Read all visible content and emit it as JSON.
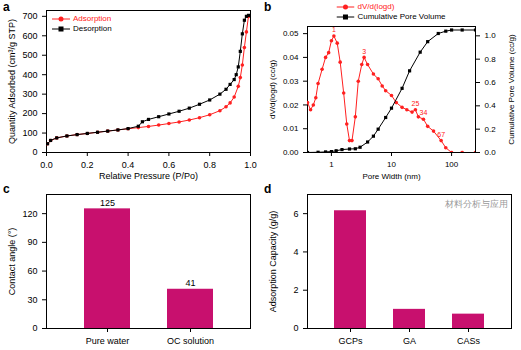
{
  "chart_data": [
    {
      "type": "line",
      "title": "a",
      "x_label": "Relative Pressure (P/Po)",
      "y_label": "Quantity Adsorbed (cm³/g STP)",
      "xlim": [
        0,
        1
      ],
      "xticks": [
        {
          "value": 0,
          "label": "0.0"
        },
        0.2,
        0.4,
        0.6,
        0.8,
        {
          "value": 1,
          "label": "1.0"
        }
      ],
      "ylim": [
        0,
        730
      ],
      "yticks": [
        0,
        100,
        200,
        300,
        400,
        500,
        600,
        700
      ],
      "legend": "upper left",
      "series": [
        {
          "name": "Adsorption",
          "color": "#ff2020",
          "marker": "circle",
          "x": [
            0.005,
            0.02,
            0.05,
            0.1,
            0.15,
            0.2,
            0.25,
            0.3,
            0.35,
            0.4,
            0.45,
            0.5,
            0.55,
            0.6,
            0.65,
            0.7,
            0.75,
            0.8,
            0.85,
            0.88,
            0.9,
            0.92,
            0.94,
            0.95,
            0.96,
            0.97,
            0.98,
            0.99
          ],
          "values": [
            45,
            62,
            75,
            85,
            92,
            98,
            104,
            110,
            116,
            122,
            128,
            134,
            141,
            149,
            157,
            167,
            179,
            194,
            215,
            235,
            255,
            285,
            340,
            385,
            450,
            540,
            620,
            700
          ]
        },
        {
          "name": "Desorption",
          "color": "#000000",
          "marker": "square",
          "x": [
            0.99,
            0.98,
            0.97,
            0.96,
            0.95,
            0.94,
            0.93,
            0.92,
            0.9,
            0.88,
            0.85,
            0.8,
            0.75,
            0.7,
            0.65,
            0.6,
            0.55,
            0.5,
            0.47,
            0.45,
            0.4,
            0.35,
            0.3,
            0.25,
            0.2,
            0.15,
            0.1,
            0.05,
            0.02,
            0.005
          ],
          "values": [
            705,
            700,
            680,
            610,
            520,
            440,
            400,
            375,
            350,
            325,
            300,
            270,
            248,
            228,
            212,
            198,
            184,
            170,
            158,
            135,
            123,
            116,
            110,
            104,
            98,
            92,
            85,
            75,
            62,
            45
          ]
        }
      ]
    },
    {
      "type": "line",
      "title": "b",
      "log": "x",
      "x_label": "Pore Width (nm)",
      "y_label": "dV/d(logd) (cc/g)",
      "y2_label": "Cumulative Pore Volume (cc/g)",
      "xlim": [
        0.4,
        250
      ],
      "xticks": [
        1,
        10,
        100
      ],
      "ylim": [
        0,
        0.053
      ],
      "yticks": [
        {
          "value": 0,
          "label": "0.00"
        },
        0.01,
        0.02,
        0.03,
        0.04,
        0.05
      ],
      "y2lim": [
        0,
        1.08
      ],
      "y2ticks": [
        {
          "value": 0,
          "label": "0.0"
        },
        0.2,
        0.4,
        0.6,
        0.8,
        {
          "value": 1,
          "label": "1.0"
        }
      ],
      "legend": "upper center",
      "series": [
        {
          "name": "dV/d(logd)",
          "color": "#ff2020",
          "marker": "circle",
          "x": [
            0.4,
            0.45,
            0.5,
            0.55,
            0.6,
            0.7,
            0.8,
            0.9,
            1.0,
            1.1,
            1.25,
            1.4,
            1.6,
            1.8,
            2.0,
            2.2,
            2.5,
            2.8,
            3.2,
            3.5,
            4,
            5,
            6,
            7,
            8,
            10,
            12,
            15,
            18,
            22,
            25,
            28,
            34,
            40,
            50,
            67,
            80,
            100,
            150,
            250
          ],
          "values": [
            0.021,
            0.018,
            0.02,
            0.023,
            0.029,
            0.035,
            0.04,
            0.042,
            0.047,
            0.049,
            0.046,
            0.038,
            0.025,
            0.012,
            0.005,
            0.005,
            0.015,
            0.03,
            0.037,
            0.04,
            0.037,
            0.033,
            0.031,
            0.028,
            0.026,
            0.024,
            0.021,
            0.019,
            0.018,
            0.017,
            0.018,
            0.015,
            0.014,
            0.011,
            0.009,
            0.005,
            0.002,
            0,
            0,
            0
          ]
        },
        {
          "name": "Cumulative Pore Volume",
          "color": "#000000",
          "marker": "square",
          "axis": "y2",
          "x": [
            0.4,
            0.6,
            0.8,
            1.0,
            1.2,
            1.5,
            2.0,
            2.5,
            3.0,
            4,
            5,
            6,
            8,
            10,
            15,
            20,
            30,
            40,
            60,
            80,
            100,
            150,
            250
          ],
          "values": [
            0,
            0.002,
            0.005,
            0.008,
            0.015,
            0.025,
            0.03,
            0.032,
            0.045,
            0.09,
            0.14,
            0.2,
            0.3,
            0.38,
            0.55,
            0.7,
            0.86,
            0.95,
            1.02,
            1.04,
            1.05,
            1.05,
            1.05
          ]
        }
      ],
      "annotations": [
        {
          "x": 1.1,
          "y": 0.049,
          "text": "1"
        },
        {
          "x": 3.5,
          "y": 0.04,
          "text": "3"
        },
        {
          "x": 25,
          "y": 0.018,
          "text": "25"
        },
        {
          "x": 34,
          "y": 0.014,
          "text": "34"
        },
        {
          "x": 67,
          "y": 0.005,
          "text": "67"
        }
      ]
    },
    {
      "type": "bar",
      "title": "c",
      "y_label": "Contact angle (°)",
      "categories": [
        "Pure water",
        "OC solution"
      ],
      "values": [
        125,
        41
      ],
      "color": "#c8106e",
      "ylim": [
        0,
        140
      ],
      "yticks": [
        0,
        30,
        60,
        90,
        120
      ],
      "data_labels": true
    },
    {
      "type": "bar",
      "title": "d",
      "y_label": "Adsorption Capacity (g/g)",
      "categories": [
        "GCPs",
        "GA",
        "CASs"
      ],
      "values": [
        6.15,
        1.0,
        0.75
      ],
      "color": "#c8106e",
      "ylim": [
        0,
        7
      ],
      "yticks": [
        0,
        2,
        4,
        6
      ],
      "data_labels": false,
      "annotations": [
        {
          "text": "材料分析与应用"
        }
      ]
    }
  ]
}
